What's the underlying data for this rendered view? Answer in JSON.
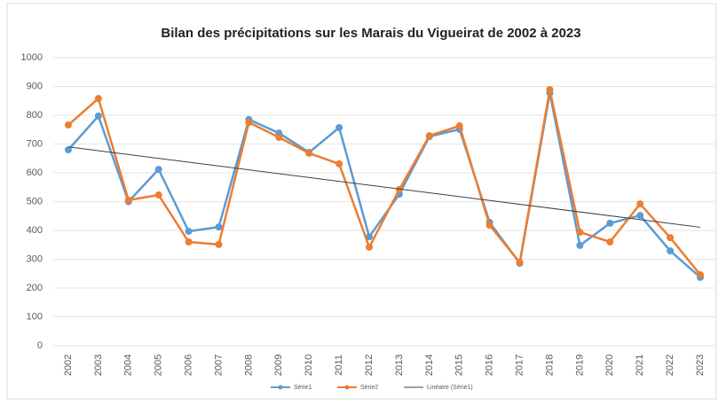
{
  "chart_data": {
    "type": "line",
    "title": "Bilan des précipitations sur les Marais du Vigueirat de 2002 à 2023",
    "categories": [
      "2002",
      "2003",
      "2004",
      "2005",
      "2006",
      "2007",
      "2008",
      "2009",
      "2010",
      "2011",
      "2012",
      "2013",
      "2014",
      "2015",
      "2016",
      "2017",
      "2018",
      "2019",
      "2020",
      "2021",
      "2022",
      "2023"
    ],
    "series": [
      {
        "name": "Série1",
        "color": "#5b9bd5",
        "values": [
          680,
          797,
          500,
          612,
          397,
          412,
          785,
          738,
          671,
          757,
          378,
          526,
          726,
          751,
          428,
          286,
          877,
          348,
          425,
          452,
          329,
          237
        ]
      },
      {
        "name": "Série2",
        "color": "#ed7d31",
        "values": [
          766,
          858,
          505,
          523,
          360,
          351,
          775,
          723,
          668,
          631,
          342,
          542,
          729,
          763,
          418,
          289,
          889,
          394,
          360,
          492,
          375,
          246
        ]
      }
    ],
    "trendline": {
      "name": "Linéaire (Série1)",
      "color": "#404040"
    },
    "ylim": [
      0,
      1000
    ],
    "yticks": [
      0,
      100,
      200,
      300,
      400,
      500,
      600,
      700,
      800,
      900,
      1000
    ],
    "grid": true,
    "legend": "bottom"
  }
}
